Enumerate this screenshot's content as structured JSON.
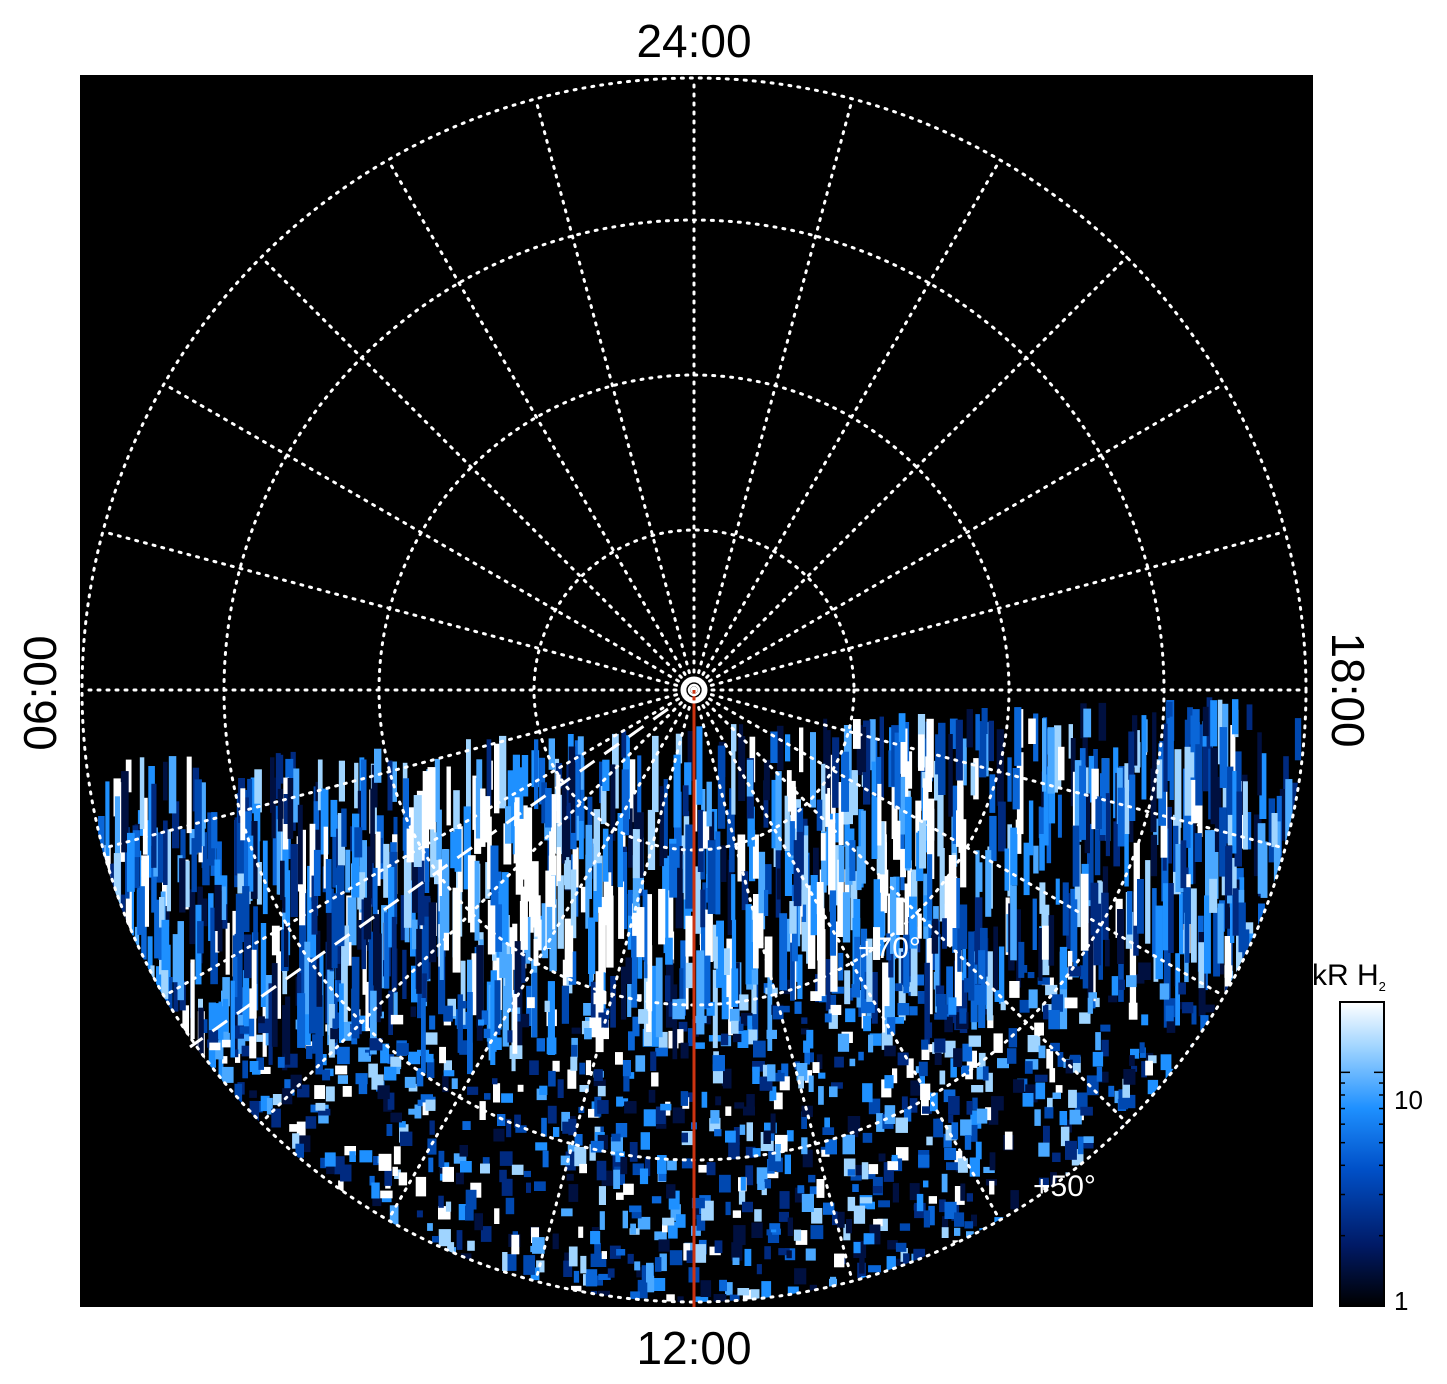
{
  "projection": {
    "local_time_labels": {
      "top": "24:00",
      "bottom": "12:00",
      "left": "06:00",
      "right": "18:00"
    },
    "latitude_labels": {
      "inner": "+70°",
      "outer": "+50°"
    },
    "meridian_count": 24,
    "grid_style": "dotted white",
    "colors": {
      "background": "#000000",
      "grid": "#ffffff",
      "meridian_line": "#cc3311",
      "dashed_line": "#ffffff"
    }
  },
  "colorbar": {
    "title_main": "kR H",
    "title_sub": "2",
    "scale": "log",
    "range": [
      1,
      20
    ],
    "tick_labels": [
      "10",
      "1"
    ],
    "colors": [
      "#000000",
      "#001a66",
      "#0050c8",
      "#1e90ff",
      "#9fd4ff",
      "#ffffff"
    ]
  }
}
